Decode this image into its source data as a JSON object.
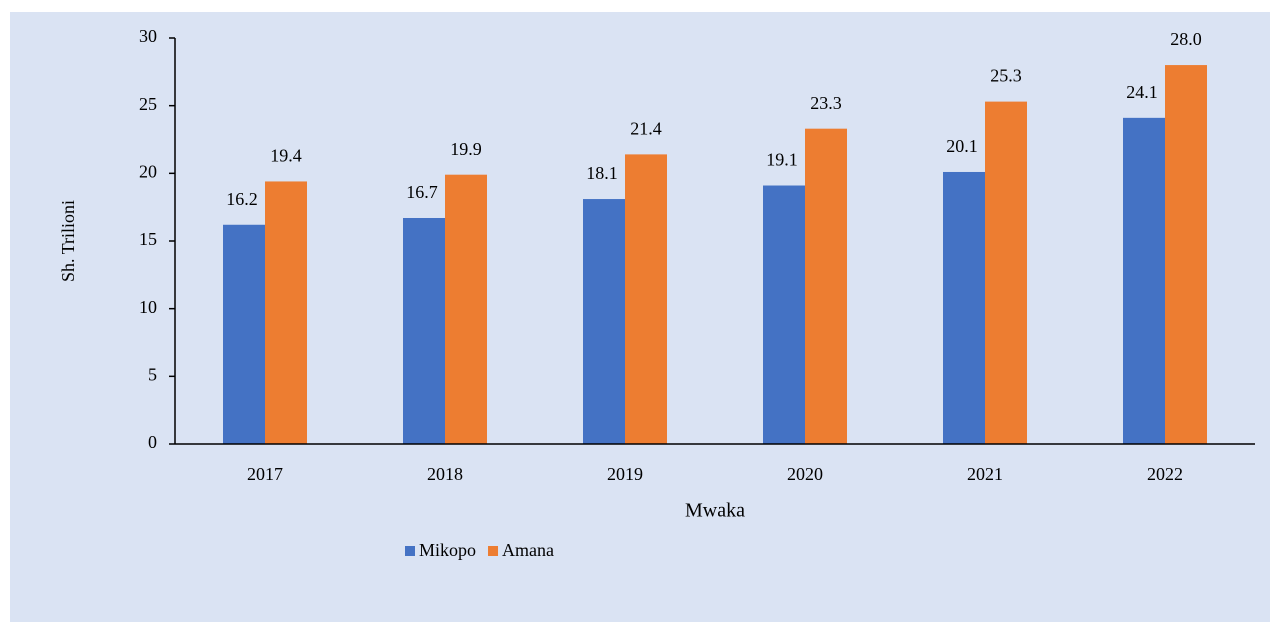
{
  "chart_data": {
    "type": "bar",
    "y_label": "Sh. Trilioni",
    "x_label": "Mwaka",
    "categories": [
      "2017",
      "2018",
      "2019",
      "2020",
      "2021",
      "2022"
    ],
    "series": [
      {
        "name": "Mikopo",
        "color": "#4472c4",
        "values": [
          16.2,
          16.7,
          18.1,
          19.1,
          20.1,
          24.1
        ]
      },
      {
        "name": "Amana",
        "color": "#ed7d31",
        "values": [
          19.4,
          19.9,
          21.4,
          23.3,
          25.3,
          28.0
        ],
        "value_labels": [
          "19.4",
          "19.9",
          "21.4",
          "23.3",
          "25.3",
          "28.0"
        ]
      }
    ],
    "ylim": [
      0,
      30
    ],
    "yticks": [
      0,
      5,
      10,
      15,
      20,
      25,
      30
    ],
    "legend": "bottom"
  }
}
